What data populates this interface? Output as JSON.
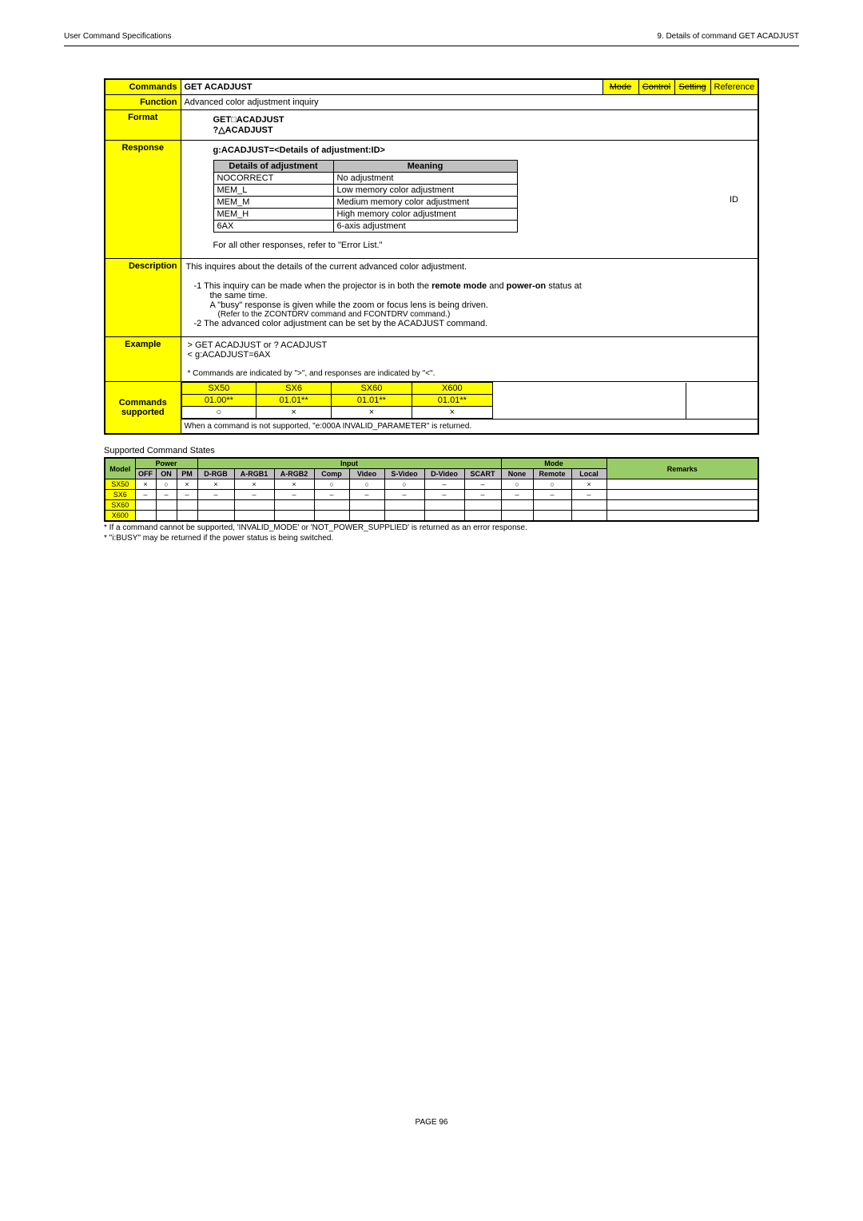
{
  "header": {
    "left": "User Command Specifications",
    "right": "9.  Details of command  GET ACADJUST"
  },
  "main": {
    "commands_label": "Commands",
    "command_name": "GET ACADJUST",
    "corners": [
      "Mode",
      "Control",
      "Setting",
      "Reference"
    ],
    "function": {
      "label": "Function",
      "text": "Advanced color adjustment inquiry"
    },
    "format": {
      "label": "Format",
      "lines": [
        "GET□ACADJUST",
        "?△ACADJUST"
      ]
    },
    "response": {
      "label": "Response",
      "header": "g:ACADJUST=<Details of adjustment:ID>",
      "table_hdr": [
        "Details of adjustment",
        "Meaning"
      ],
      "rows": [
        [
          "NOCORRECT",
          "No adjustment"
        ],
        [
          "MEM_L",
          "Low memory color adjustment"
        ],
        [
          "MEM_M",
          "Medium memory color adjustment"
        ],
        [
          "MEM_H",
          "High memory color adjustment"
        ],
        [
          "6AX",
          "6-axis adjustment"
        ]
      ],
      "side": "ID",
      "footer": "For all other responses, refer to \"Error List.\""
    },
    "description": {
      "label": "Description",
      "line1": "This inquires about the details of the current advanced color adjustment.",
      "bullets": [
        "-1  This inquiry can be made when the projector is in both the",
        "remote mode",
        "and",
        "power-on",
        "status at",
        "the same time.",
        "A \"busy\" response is given while the zoom or focus lens is being driven.",
        "(Refer to the ZCONTDRV command and FCONTDRV command.)",
        "-2  The advanced color adjustment can be set by the ACADJUST command."
      ]
    },
    "example": {
      "label": "Example",
      "lines": [
        ">  GET ACADJUST or ? ACADJUST",
        "<  g:ACADJUST=6AX"
      ],
      "note": "* Commands are indicated by \">\", and responses are indicated by \"<\"."
    },
    "supported": {
      "label1": "Commands",
      "label2": "supported",
      "hdr": [
        "SX50",
        "SX6",
        "SX60",
        "X600"
      ],
      "vals": [
        "01.00**",
        "01.01**",
        "01.01**",
        "01.01**"
      ],
      "row2": [
        "○",
        "×",
        "×",
        "×"
      ],
      "note": "When a command is not supported, \"e:000A INVALID_PARAMETER\" is returned."
    }
  },
  "states": {
    "caption": "Supported Command States",
    "group_hdr": [
      "Model",
      "Power",
      "Input",
      "Mode",
      "Remarks"
    ],
    "sub_hdr": [
      "OFF",
      "ON",
      "PM",
      "D-RGB",
      "A-RGB1",
      "A-RGB2",
      "Comp",
      "Video",
      "S-Video",
      "D-Video",
      "SCART",
      "None",
      "Remote",
      "Local"
    ],
    "rows": [
      {
        "model": "SX50",
        "cells": [
          "×",
          "○",
          "×",
          "×",
          "×",
          "×",
          "○",
          "○",
          "○",
          "–",
          "–",
          "○",
          "○",
          "×",
          ""
        ]
      },
      {
        "model": "SX6",
        "cells": [
          "–",
          "–",
          "–",
          "–",
          "–",
          "–",
          "–",
          "–",
          "–",
          "–",
          "–",
          "–",
          "–",
          "–",
          ""
        ]
      },
      {
        "model": "SX60",
        "cells": [
          "",
          "",
          "",
          "",
          "",
          "",
          "",
          "",
          "",
          "",
          "",
          "",
          "",
          "",
          ""
        ]
      },
      {
        "model": "X600",
        "cells": [
          "",
          "",
          "",
          "",
          "",
          "",
          "",
          "",
          "",
          "",
          "",
          "",
          "",
          "",
          ""
        ]
      }
    ],
    "foot1": "* If a command cannot be supported, 'INVALID_MODE' or 'NOT_POWER_SUPPLIED' is returned as an error response.",
    "foot2": "* \"i:BUSY\" may be returned if the power status is being switched."
  },
  "footer": {
    "page": "PAGE 96"
  }
}
